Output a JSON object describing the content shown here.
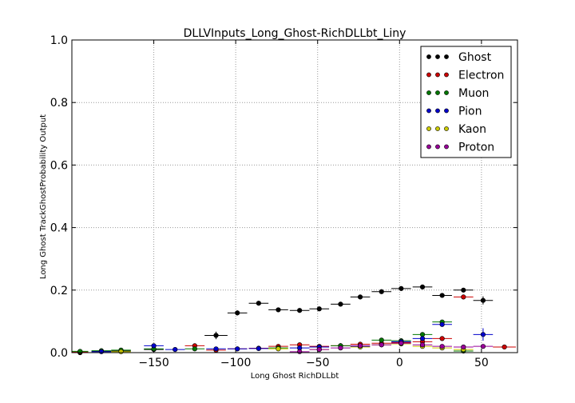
{
  "chart_data": {
    "type": "scatter",
    "title": "DLLVInputs_Long_Ghost-RichDLLbt_Liny",
    "xlabel": "Long Ghost RichDLLbt",
    "ylabel": "Long Ghost TrackGhostProbability Output",
    "xlim": [
      -200,
      72
    ],
    "ylim": [
      0.0,
      1.0
    ],
    "grid": true,
    "legend_position": "top-right",
    "xticks": [
      -150,
      -100,
      -50,
      0,
      50
    ],
    "xtick_labels": [
      "−150",
      "−100",
      "−50",
      "0",
      "50"
    ],
    "yticks": [
      0.0,
      0.2,
      0.4,
      0.6,
      0.8,
      1.0
    ],
    "ytick_labels": [
      "0.0",
      "0.2",
      "0.4",
      "0.6",
      "0.8",
      "1.0"
    ],
    "series": [
      {
        "name": "Ghost",
        "color": "#000000",
        "points": [
          {
            "x": -195,
            "y": 0.0,
            "dx": 5,
            "err": 0
          },
          {
            "x": -182,
            "y": 0.004,
            "dx": 6,
            "err": 0.003
          },
          {
            "x": -170,
            "y": 0.005,
            "dx": 6,
            "err": 0.003
          },
          {
            "x": -150,
            "y": 0.01,
            "dx": 6,
            "err": 0.004
          },
          {
            "x": -112,
            "y": 0.055,
            "dx": 7,
            "err": 0.012
          },
          {
            "x": -99,
            "y": 0.127,
            "dx": 6,
            "err": 0.008
          },
          {
            "x": -86,
            "y": 0.158,
            "dx": 6,
            "err": 0.006
          },
          {
            "x": -74,
            "y": 0.137,
            "dx": 6,
            "err": 0.005
          },
          {
            "x": -61,
            "y": 0.135,
            "dx": 6,
            "err": 0.005
          },
          {
            "x": -49,
            "y": 0.14,
            "dx": 6,
            "err": 0.005
          },
          {
            "x": -36,
            "y": 0.155,
            "dx": 6,
            "err": 0.005
          },
          {
            "x": -24,
            "y": 0.178,
            "dx": 6,
            "err": 0.005
          },
          {
            "x": -11,
            "y": 0.195,
            "dx": 6,
            "err": 0.005
          },
          {
            "x": 1,
            "y": 0.205,
            "dx": 6,
            "err": 0.005
          },
          {
            "x": 14,
            "y": 0.21,
            "dx": 6,
            "err": 0.005
          },
          {
            "x": 26,
            "y": 0.183,
            "dx": 6,
            "err": 0.005
          },
          {
            "x": 39,
            "y": 0.2,
            "dx": 6,
            "err": 0.006
          },
          {
            "x": 51,
            "y": 0.167,
            "dx": 6,
            "err": 0.013
          }
        ]
      },
      {
        "name": "Electron",
        "color": "#cc0000",
        "points": [
          {
            "x": -195,
            "y": 0.002,
            "dx": 5,
            "err": 0
          },
          {
            "x": -125,
            "y": 0.022,
            "dx": 6,
            "err": 0.004
          },
          {
            "x": -112,
            "y": 0.008,
            "dx": 6,
            "err": 0.003
          },
          {
            "x": -99,
            "y": 0.012,
            "dx": 6,
            "err": 0.003
          },
          {
            "x": -86,
            "y": 0.014,
            "dx": 6,
            "err": 0.003
          },
          {
            "x": -74,
            "y": 0.02,
            "dx": 6,
            "err": 0.003
          },
          {
            "x": -61,
            "y": 0.025,
            "dx": 6,
            "err": 0.003
          },
          {
            "x": -49,
            "y": 0.02,
            "dx": 6,
            "err": 0.003
          },
          {
            "x": -36,
            "y": 0.022,
            "dx": 6,
            "err": 0.003
          },
          {
            "x": -24,
            "y": 0.027,
            "dx": 6,
            "err": 0.003
          },
          {
            "x": -11,
            "y": 0.03,
            "dx": 6,
            "err": 0.003
          },
          {
            "x": 1,
            "y": 0.032,
            "dx": 6,
            "err": 0.003
          },
          {
            "x": 14,
            "y": 0.035,
            "dx": 6,
            "err": 0.003
          },
          {
            "x": 26,
            "y": 0.045,
            "dx": 6,
            "err": 0.003
          },
          {
            "x": 39,
            "y": 0.178,
            "dx": 6,
            "err": 0.004
          },
          {
            "x": 64,
            "y": 0.018,
            "dx": 7,
            "err": 0.003
          }
        ]
      },
      {
        "name": "Muon",
        "color": "#007700",
        "points": [
          {
            "x": -195,
            "y": 0.004,
            "dx": 5,
            "err": 0
          },
          {
            "x": -182,
            "y": 0.006,
            "dx": 6,
            "err": 0.002
          },
          {
            "x": -170,
            "y": 0.008,
            "dx": 6,
            "err": 0.002
          },
          {
            "x": -150,
            "y": 0.012,
            "dx": 6,
            "err": 0.003
          },
          {
            "x": -125,
            "y": 0.012,
            "dx": 6,
            "err": 0.003
          },
          {
            "x": -74,
            "y": 0.015,
            "dx": 6,
            "err": 0.003
          },
          {
            "x": -36,
            "y": 0.022,
            "dx": 6,
            "err": 0.003
          },
          {
            "x": -11,
            "y": 0.04,
            "dx": 6,
            "err": 0.003
          },
          {
            "x": 1,
            "y": 0.038,
            "dx": 6,
            "err": 0.003
          },
          {
            "x": 14,
            "y": 0.058,
            "dx": 6,
            "err": 0.004
          },
          {
            "x": 26,
            "y": 0.098,
            "dx": 6,
            "err": 0.004
          },
          {
            "x": 39,
            "y": 0.005,
            "dx": 6,
            "err": 0.002
          }
        ]
      },
      {
        "name": "Pion",
        "color": "#0000cc",
        "points": [
          {
            "x": -182,
            "y": 0.003,
            "dx": 6,
            "err": 0.002
          },
          {
            "x": -150,
            "y": 0.022,
            "dx": 6,
            "err": 0.005
          },
          {
            "x": -137,
            "y": 0.01,
            "dx": 6,
            "err": 0.003
          },
          {
            "x": -112,
            "y": 0.012,
            "dx": 6,
            "err": 0.003
          },
          {
            "x": -99,
            "y": 0.012,
            "dx": 6,
            "err": 0.003
          },
          {
            "x": -86,
            "y": 0.013,
            "dx": 6,
            "err": 0.003
          },
          {
            "x": -61,
            "y": 0.015,
            "dx": 6,
            "err": 0.003
          },
          {
            "x": -49,
            "y": 0.018,
            "dx": 6,
            "err": 0.003
          },
          {
            "x": -24,
            "y": 0.02,
            "dx": 6,
            "err": 0.003
          },
          {
            "x": 1,
            "y": 0.035,
            "dx": 6,
            "err": 0.003
          },
          {
            "x": 14,
            "y": 0.045,
            "dx": 6,
            "err": 0.004
          },
          {
            "x": 26,
            "y": 0.09,
            "dx": 6,
            "err": 0.006
          },
          {
            "x": 51,
            "y": 0.058,
            "dx": 6,
            "err": 0.02
          }
        ]
      },
      {
        "name": "Kaon",
        "color": "#cccc00",
        "points": [
          {
            "x": -170,
            "y": 0.003,
            "dx": 6,
            "err": 0.002
          },
          {
            "x": -74,
            "y": 0.012,
            "dx": 6,
            "err": 0.003
          },
          {
            "x": -49,
            "y": 0.01,
            "dx": 6,
            "err": 0.003
          },
          {
            "x": -24,
            "y": 0.018,
            "dx": 6,
            "err": 0.003
          },
          {
            "x": -11,
            "y": 0.025,
            "dx": 6,
            "err": 0.003
          },
          {
            "x": 1,
            "y": 0.028,
            "dx": 6,
            "err": 0.003
          },
          {
            "x": 14,
            "y": 0.02,
            "dx": 6,
            "err": 0.003
          },
          {
            "x": 26,
            "y": 0.015,
            "dx": 6,
            "err": 0.003
          },
          {
            "x": 39,
            "y": 0.01,
            "dx": 6,
            "err": 0.003
          }
        ]
      },
      {
        "name": "Proton",
        "color": "#990099",
        "points": [
          {
            "x": -61,
            "y": 0.003,
            "dx": 6,
            "err": 0.002
          },
          {
            "x": -49,
            "y": 0.01,
            "dx": 6,
            "err": 0.002
          },
          {
            "x": -36,
            "y": 0.015,
            "dx": 6,
            "err": 0.003
          },
          {
            "x": -24,
            "y": 0.022,
            "dx": 6,
            "err": 0.003
          },
          {
            "x": -11,
            "y": 0.025,
            "dx": 6,
            "err": 0.003
          },
          {
            "x": 1,
            "y": 0.03,
            "dx": 6,
            "err": 0.003
          },
          {
            "x": 14,
            "y": 0.025,
            "dx": 6,
            "err": 0.003
          },
          {
            "x": 26,
            "y": 0.02,
            "dx": 6,
            "err": 0.003
          },
          {
            "x": 39,
            "y": 0.018,
            "dx": 6,
            "err": 0.003
          },
          {
            "x": 51,
            "y": 0.02,
            "dx": 6,
            "err": 0.003
          }
        ]
      }
    ]
  }
}
